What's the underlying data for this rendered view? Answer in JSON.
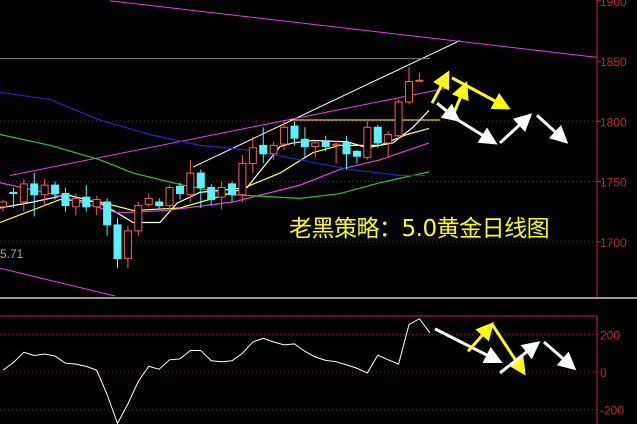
{
  "chart_data": [
    {
      "type": "candlestick",
      "title": "老黑策略：5.0黄金日线图",
      "side_value": "5.71",
      "ylim": [
        1655,
        1901
      ],
      "y_ticks": [
        1900,
        1850,
        1800,
        1750,
        1700
      ],
      "grid": "dotted horizontal",
      "colors": {
        "up": "#ff5a5a",
        "down": "#54f4ff",
        "axis": "#c0282d"
      },
      "candles": [
        [
          1729,
          1735,
          1725,
          1733
        ],
        [
          1741,
          1745,
          1728,
          1740
        ],
        [
          1733,
          1752,
          1725,
          1748
        ],
        [
          1748,
          1757,
          1721,
          1739
        ],
        [
          1739,
          1752,
          1730,
          1747
        ],
        [
          1747,
          1750,
          1735,
          1740
        ],
        [
          1740,
          1745,
          1725,
          1730
        ],
        [
          1729,
          1740,
          1722,
          1736
        ],
        [
          1737,
          1747,
          1725,
          1729
        ],
        [
          1729,
          1738,
          1722,
          1735
        ],
        [
          1733,
          1736,
          1705,
          1714
        ],
        [
          1714,
          1720,
          1678,
          1686
        ],
        [
          1686,
          1713,
          1678,
          1709
        ],
        [
          1709,
          1733,
          1705,
          1730
        ],
        [
          1731,
          1740,
          1729,
          1736
        ],
        [
          1733,
          1736,
          1727,
          1730
        ],
        [
          1730,
          1747,
          1727,
          1745
        ],
        [
          1746,
          1749,
          1735,
          1740
        ],
        [
          1739,
          1768,
          1733,
          1757
        ],
        [
          1757,
          1760,
          1728,
          1745
        ],
        [
          1745,
          1748,
          1730,
          1735
        ],
        [
          1737,
          1750,
          1727,
          1745
        ],
        [
          1748,
          1750,
          1733,
          1739
        ],
        [
          1739,
          1772,
          1733,
          1765
        ],
        [
          1765,
          1787,
          1757,
          1778
        ],
        [
          1780,
          1795,
          1765,
          1773
        ],
        [
          1773,
          1783,
          1768,
          1780
        ],
        [
          1781,
          1800,
          1776,
          1795
        ],
        [
          1796,
          1800,
          1780,
          1786
        ],
        [
          1785,
          1795,
          1770,
          1779
        ],
        [
          1779,
          1784,
          1770,
          1782
        ],
        [
          1783,
          1788,
          1775,
          1779
        ],
        [
          1780,
          1784,
          1765,
          1781
        ],
        [
          1782,
          1788,
          1760,
          1773
        ],
        [
          1775,
          1776,
          1765,
          1771
        ],
        [
          1770,
          1800,
          1768,
          1795
        ],
        [
          1795,
          1797,
          1778,
          1782
        ],
        [
          1782,
          1792,
          1770,
          1789
        ],
        [
          1788,
          1818,
          1785,
          1816
        ],
        [
          1816,
          1845,
          1814,
          1833
        ],
        [
          1834,
          1840,
          1834,
          1834
        ]
      ],
      "candle_fields": [
        "open",
        "high",
        "low",
        "close"
      ],
      "moving_averages": [
        {
          "color": "#ffffff",
          "points": [
            [
              0,
              1728
            ],
            [
              33,
              1733
            ],
            [
              67,
              1739
            ],
            [
              100,
              1732
            ],
            [
              117,
              1724
            ],
            [
              133,
              1716
            ],
            [
              160,
              1716
            ],
            [
              177,
              1732
            ],
            [
              200,
              1741
            ],
            [
              247,
              1745
            ],
            [
              280,
              1779
            ],
            [
              293,
              1782
            ],
            [
              313,
              1784
            ],
            [
              347,
              1783
            ],
            [
              367,
              1778
            ],
            [
              393,
              1782
            ],
            [
              413,
              1795
            ],
            [
              429,
              1809
            ]
          ]
        },
        {
          "color": "#ffff4a",
          "points": [
            [
              0,
              1716
            ],
            [
              60,
              1735
            ],
            [
              100,
              1733
            ],
            [
              133,
              1726
            ],
            [
              180,
              1728
            ],
            [
              230,
              1740
            ],
            [
              280,
              1757
            ],
            [
              313,
              1774
            ],
            [
              340,
              1780
            ],
            [
              380,
              1780
            ],
            [
              407,
              1789
            ],
            [
              429,
              1794
            ]
          ]
        },
        {
          "color": "#e040e0",
          "points": [
            [
              0,
              1749
            ],
            [
              50,
              1740
            ],
            [
              117,
              1724
            ],
            [
              167,
              1726
            ],
            [
              233,
              1733
            ],
            [
              300,
              1747
            ],
            [
              340,
              1760
            ],
            [
              380,
              1768
            ],
            [
              429,
              1782
            ]
          ]
        },
        {
          "color": "#30c030",
          "points": [
            [
              0,
              1789
            ],
            [
              50,
              1780
            ],
            [
              100,
              1768
            ],
            [
              133,
              1757
            ],
            [
              183,
              1747
            ],
            [
              233,
              1739
            ],
            [
              300,
              1736
            ],
            [
              340,
              1740
            ],
            [
              380,
              1749
            ],
            [
              429,
              1758
            ]
          ]
        },
        {
          "color": "#1a2ad0",
          "points": [
            [
              0,
              1824
            ],
            [
              50,
              1818
            ],
            [
              100,
              1801
            ],
            [
              150,
              1789
            ],
            [
              200,
              1780
            ],
            [
              250,
              1776
            ],
            [
              300,
              1768
            ],
            [
              350,
              1760
            ],
            [
              400,
              1755
            ],
            [
              425,
              1755
            ]
          ]
        }
      ],
      "trend_lines": [
        {
          "color": "#ffffff",
          "from": [
            193,
            1762
          ],
          "to": [
            460,
            1867
          ]
        },
        {
          "color": "#e040e0",
          "from": [
            10,
            1755
          ],
          "to": [
            450,
            1828
          ]
        },
        {
          "color": "#e040e0",
          "from": [
            110,
            1900
          ],
          "to": [
            597,
            1853
          ]
        },
        {
          "color": "#e040e0",
          "from": [
            0,
            1678
          ],
          "to": [
            115,
            1655
          ]
        },
        {
          "color": "#808080",
          "from": [
            0,
            1852
          ],
          "to": [
            430,
            1852
          ]
        },
        {
          "color": "#ffff4a",
          "from": [
            290,
            1801
          ],
          "to": [
            440,
            1801
          ]
        }
      ],
      "arrows": [
        {
          "color": "#ffff00",
          "from": [
            432,
            1815
          ],
          "to": [
            448,
            1840
          ]
        },
        {
          "color": "#ffff00",
          "from": [
            452,
            1803
          ],
          "to": [
            466,
            1831
          ]
        },
        {
          "color": "#ffff00",
          "from": [
            452,
            1836
          ],
          "to": [
            508,
            1811
          ]
        },
        {
          "color": "#ffffff",
          "from": [
            437,
            1815
          ],
          "to": [
            458,
            1801
          ]
        },
        {
          "color": "#ffffff",
          "from": [
            458,
            1801
          ],
          "to": [
            495,
            1782
          ]
        },
        {
          "color": "#ffffff",
          "from": [
            500,
            1782
          ],
          "to": [
            530,
            1805
          ]
        },
        {
          "color": "#ffffff",
          "from": [
            537,
            1805
          ],
          "to": [
            566,
            1783
          ]
        }
      ]
    },
    {
      "type": "line",
      "ylim": [
        -270,
        300
      ],
      "y_ticks": [
        200,
        0,
        -200
      ],
      "grid": "dotted horizontal",
      "values": [
        10,
        50,
        105,
        88,
        96,
        85,
        47,
        42,
        30,
        10,
        -120,
        -274,
        -170,
        -50,
        30,
        15,
        65,
        70,
        115,
        115,
        60,
        55,
        60,
        100,
        160,
        180,
        160,
        145,
        150,
        110,
        80,
        62,
        55,
        38,
        20,
        -5,
        90,
        65,
        42,
        253,
        284,
        209
      ],
      "arrows": [
        {
          "color": "#ffffff",
          "from": [
            435,
            230
          ],
          "to": [
            500,
            55
          ]
        },
        {
          "color": "#ffff00",
          "from": [
            468,
            110
          ],
          "to": [
            492,
            255
          ]
        },
        {
          "color": "#ffff00",
          "from": [
            492,
            255
          ],
          "to": [
            524,
            -5
          ]
        },
        {
          "color": "#ffffff",
          "from": [
            500,
            -5
          ],
          "to": [
            538,
            155
          ]
        },
        {
          "color": "#ffffff",
          "from": [
            544,
            160
          ],
          "to": [
            574,
            20
          ]
        }
      ]
    }
  ]
}
